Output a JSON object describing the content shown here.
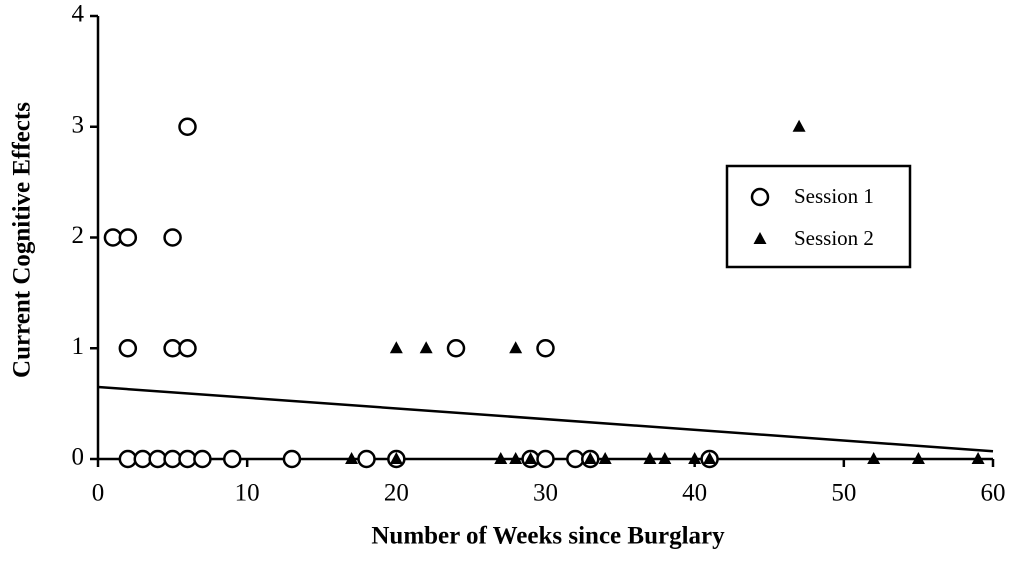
{
  "chart_data": {
    "type": "scatter",
    "x_label": "Number of Weeks since Burglary",
    "y_label": "Current Cognitive Effects",
    "xlim": [
      0,
      60
    ],
    "xticks": [
      0,
      10,
      20,
      30,
      40,
      50,
      60
    ],
    "ylim": [
      0,
      4
    ],
    "yticks": [
      0,
      1,
      2,
      3,
      4
    ],
    "legend": "right",
    "series": [
      {
        "name": "Session 1",
        "marker": "circle",
        "color": "#000000",
        "x": [
          6,
          1,
          2,
          5,
          2,
          5,
          6,
          24,
          30,
          2,
          3,
          4,
          5,
          6,
          7,
          9,
          13,
          18,
          20,
          29,
          30,
          32,
          33,
          41
        ],
        "y": [
          3,
          2,
          2,
          2,
          1,
          1,
          1,
          1,
          1,
          0,
          0,
          0,
          0,
          0,
          0,
          0,
          0,
          0,
          0,
          0,
          0,
          0,
          0,
          0
        ]
      },
      {
        "name": "Session 2",
        "marker": "triangle",
        "color": "#000000",
        "x": [
          47,
          20,
          22,
          28,
          17,
          20,
          27,
          28,
          29,
          33,
          34,
          37,
          38,
          40,
          41,
          52,
          55,
          59
        ],
        "y": [
          3,
          1,
          1,
          1,
          0,
          0,
          0,
          0,
          0,
          0,
          0,
          0,
          0,
          0,
          0,
          0,
          0,
          0
        ]
      }
    ],
    "trend_line": {
      "x": [
        0,
        60
      ],
      "y": [
        0.65,
        0.07
      ]
    }
  }
}
